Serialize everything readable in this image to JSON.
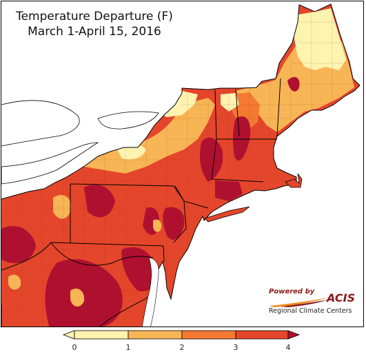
{
  "title": "Temperature Departure (F)",
  "subtitle": "March 1-April 15, 2016",
  "credit": {
    "powered_by": "Powered by",
    "brand": "ACIS",
    "organization": "Regional Climate Centers"
  },
  "legend": {
    "ticks": [
      "0",
      "1",
      "2",
      "3",
      "4"
    ],
    "colors": [
      "#fff3b0",
      "#f8b555",
      "#f47a32",
      "#e4462b",
      "#b01030"
    ]
  },
  "map": {
    "region": "Northeast United States",
    "colors": {
      "land": "#e4462b",
      "water": "#ffffff",
      "border": "#000000"
    }
  }
}
